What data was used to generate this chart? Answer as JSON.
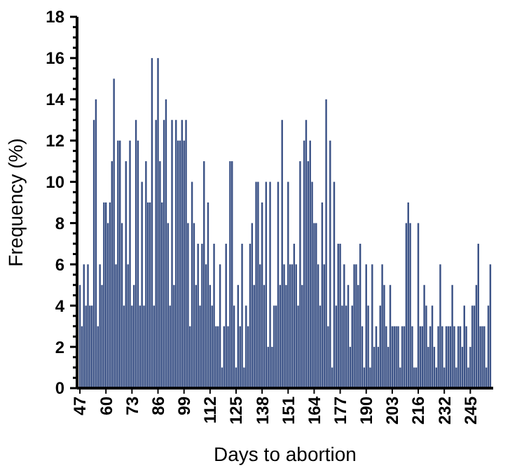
{
  "chart_data": {
    "type": "bar",
    "xlabel": "Days to abortion",
    "ylabel": "Frequency (%)",
    "color": "#3b5286",
    "categories": [
      "47",
      null,
      null,
      null,
      null,
      null,
      null,
      null,
      null,
      null,
      null,
      null,
      null,
      "60",
      null,
      null,
      null,
      null,
      null,
      null,
      null,
      null,
      null,
      null,
      null,
      null,
      "73",
      null,
      null,
      null,
      null,
      null,
      null,
      null,
      null,
      null,
      null,
      null,
      null,
      "86",
      null,
      null,
      null,
      null,
      null,
      null,
      null,
      null,
      null,
      null,
      null,
      null,
      "99",
      null,
      null,
      null,
      null,
      null,
      null,
      null,
      null,
      null,
      null,
      null,
      null,
      "112",
      null,
      null,
      null,
      null,
      null,
      null,
      null,
      null,
      null,
      null,
      null,
      null,
      "125",
      null,
      null,
      null,
      null,
      null,
      null,
      null,
      null,
      null,
      null,
      null,
      null,
      "138",
      null,
      null,
      null,
      null,
      null,
      null,
      null,
      null,
      null,
      null,
      null,
      null,
      "151",
      null,
      null,
      null,
      null,
      null,
      null,
      null,
      null,
      null,
      null,
      null,
      null,
      "164",
      null,
      null,
      null,
      null,
      null,
      null,
      null,
      null,
      null,
      null,
      null,
      null,
      "177",
      null,
      null,
      null,
      null,
      null,
      null,
      null,
      null,
      null,
      null,
      null,
      null,
      "190",
      null,
      null,
      null,
      null,
      null,
      null,
      null,
      null,
      null,
      null,
      null,
      null,
      "203",
      null,
      null,
      null,
      null,
      null,
      null,
      null,
      null,
      null,
      null,
      null,
      null,
      "216",
      null,
      null,
      null,
      null,
      null,
      null,
      null,
      null,
      null,
      null,
      null,
      null,
      "232",
      null,
      null,
      null,
      null,
      null,
      null,
      null,
      null,
      null,
      null,
      null,
      null,
      "245",
      null,
      null,
      null,
      null,
      null,
      null,
      null,
      null,
      null,
      null
    ],
    "values": [
      5,
      3,
      6,
      4,
      6,
      4,
      4,
      13,
      14,
      3,
      6,
      5,
      9,
      9,
      8,
      9,
      11,
      15,
      6,
      12,
      12,
      8,
      4,
      11,
      6,
      12,
      4,
      5,
      13,
      12,
      4,
      10,
      4,
      11,
      9,
      9,
      16,
      4,
      13,
      16,
      11,
      9,
      13,
      14,
      8,
      4,
      13,
      5,
      13,
      12,
      12,
      13,
      12,
      13,
      8,
      3,
      10,
      8,
      5,
      7,
      4,
      7,
      11,
      6,
      9,
      5,
      4,
      7,
      3,
      3,
      6,
      1,
      3,
      7,
      3,
      11,
      11,
      4,
      1,
      5,
      3,
      7,
      1,
      4,
      3,
      7,
      8,
      5,
      10,
      10,
      6,
      9,
      5,
      10,
      2,
      10,
      2,
      4,
      4,
      10,
      5,
      13,
      6,
      5,
      10,
      6,
      6,
      7,
      6,
      4,
      11,
      5,
      12,
      13,
      11,
      12,
      10,
      8,
      8,
      6,
      4,
      9,
      6,
      14,
      3,
      12,
      1,
      10,
      4,
      7,
      7,
      4,
      6,
      4,
      5,
      2,
      4,
      6,
      6,
      5,
      7,
      3,
      1,
      6,
      4,
      1,
      6,
      2,
      3,
      2,
      4,
      6,
      5,
      3,
      2,
      5,
      3,
      3,
      3,
      3,
      1,
      3,
      3,
      8,
      9,
      8,
      3,
      1,
      1,
      8,
      3,
      3,
      5,
      4,
      2,
      3,
      4,
      2,
      1,
      3,
      6,
      3,
      1,
      3,
      3,
      3,
      5,
      3,
      1,
      3,
      3,
      2,
      4,
      3,
      1,
      2,
      4,
      4,
      5,
      7,
      3,
      3,
      3,
      1,
      4,
      6
    ],
    "ylim": [
      0,
      18
    ],
    "yticks": [
      0,
      {
        "value": 0.5,
        "label": null
      },
      {
        "value": 1,
        "label": null
      },
      {
        "value": 1.5,
        "label": null
      },
      2,
      {
        "value": 2.5,
        "label": null
      },
      {
        "value": 3,
        "label": null
      },
      {
        "value": 3.5,
        "label": null
      },
      4,
      {
        "value": 4.5,
        "label": null
      },
      {
        "value": 5,
        "label": null
      },
      {
        "value": 5.5,
        "label": null
      },
      6,
      {
        "value": 6.5,
        "label": null
      },
      {
        "value": 7,
        "label": null
      },
      {
        "value": 7.5,
        "label": null
      },
      8,
      {
        "value": 8.5,
        "label": null
      },
      {
        "value": 9,
        "label": null
      },
      {
        "value": 9.5,
        "label": null
      },
      10,
      {
        "value": 10.5,
        "label": null
      },
      {
        "value": 11,
        "label": null
      },
      {
        "value": 11.5,
        "label": null
      },
      12,
      {
        "value": 12.5,
        "label": null
      },
      {
        "value": 13,
        "label": null
      },
      {
        "value": 13.5,
        "label": null
      },
      14,
      {
        "value": 14.5,
        "label": null
      },
      {
        "value": 15,
        "label": null
      },
      {
        "value": 15.5,
        "label": null
      },
      16,
      {
        "value": 16.5,
        "label": null
      },
      {
        "value": 17,
        "label": null
      },
      {
        "value": 17.5,
        "label": null
      },
      18
    ]
  }
}
